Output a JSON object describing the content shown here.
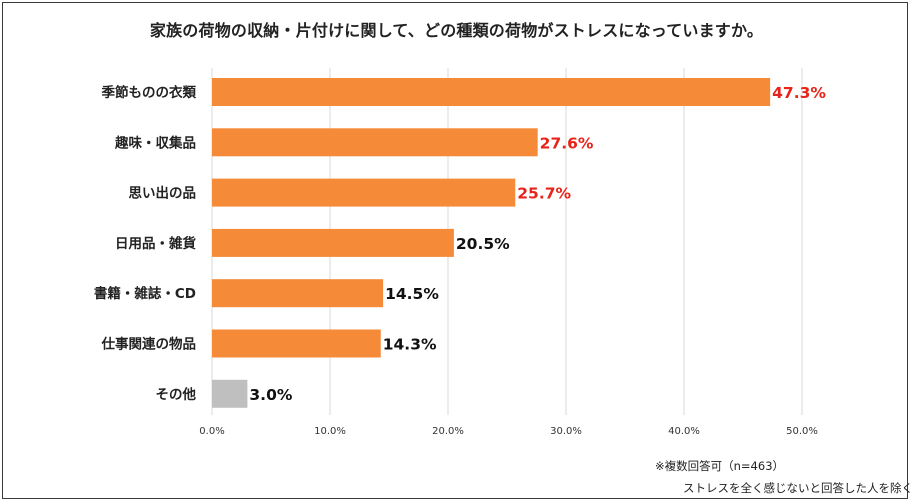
{
  "title": "家族の荷物の収納・片付けに関して、どの種類の荷物がストレスになっていますか。",
  "notes": {
    "line1": "※複数回答可（n=463）",
    "line2": "ストレスを全く感じないと回答した人を除く"
  },
  "colors": {
    "bar": "#F58A38",
    "bar_other": "#BFBFBF",
    "highlight_label": "#E8231A",
    "normal_label": "#111111",
    "grid": "#D9D9D9"
  },
  "chart_data": {
    "type": "bar",
    "orientation": "horizontal",
    "categories": [
      "季節ものの衣類",
      "趣味・収集品",
      "思い出の品",
      "日用品・雑貨",
      "書籍・雑誌・CD",
      "仕事関連の物品",
      "その他"
    ],
    "values": [
      47.3,
      27.6,
      25.7,
      20.5,
      14.5,
      14.3,
      3.0
    ],
    "value_labels": [
      "47.3%",
      "27.6%",
      "25.7%",
      "20.5%",
      "14.5%",
      "14.3%",
      "3.0%"
    ],
    "highlighted": [
      true,
      true,
      true,
      false,
      false,
      false,
      false
    ],
    "gray": [
      false,
      false,
      false,
      false,
      false,
      false,
      true
    ],
    "x_ticks": [
      0,
      10,
      20,
      30,
      40,
      50
    ],
    "x_tick_labels": [
      "0.0%",
      "10.0%",
      "20.0%",
      "30.0%",
      "40.0%",
      "50.0%"
    ],
    "xlim": [
      0,
      50
    ],
    "grid": true,
    "legend": "none"
  }
}
